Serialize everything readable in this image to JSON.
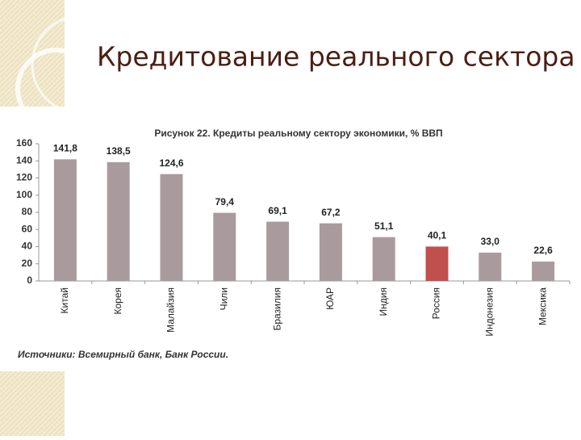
{
  "slide_title": "Кредитование реального сектора",
  "source": "Источники: Всемирный банк, Банк России.",
  "chart_data": {
    "type": "bar",
    "title": "Рисунок 22. Кредиты реальному сектору экономики, % ВВП",
    "categories": [
      "Китай",
      "Корея",
      "Малайзия",
      "Чили",
      "Бразилия",
      "ЮАР",
      "Индия",
      "Россия",
      "Индонезия",
      "Мексика"
    ],
    "values": [
      141.8,
      138.5,
      124.6,
      79.4,
      69.1,
      67.2,
      51.1,
      40.1,
      33.0,
      22.6
    ],
    "value_labels": [
      "141,8",
      "138,5",
      "124,6",
      "79,4",
      "69,1",
      "67,2",
      "51,1",
      "40,1",
      "33,0",
      "22,6"
    ],
    "colors": [
      "#a99b9d",
      "#a99b9d",
      "#a99b9d",
      "#a99b9d",
      "#a99b9d",
      "#a99b9d",
      "#a99b9d",
      "#c0504d",
      "#a99b9d",
      "#a99b9d"
    ],
    "ylim": [
      0,
      160
    ],
    "yticks": [
      0,
      20,
      40,
      60,
      80,
      100,
      120,
      140,
      160
    ],
    "grid": false
  }
}
